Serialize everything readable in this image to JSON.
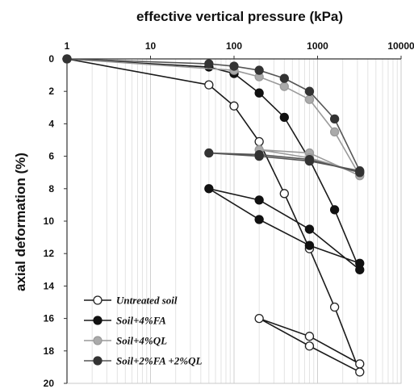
{
  "chart_data": {
    "type": "line",
    "title": "",
    "xlabel": "effective vertical pressure (kPa)",
    "ylabel": "axial deformation (%)",
    "x_scale": "log",
    "xlim": [
      1,
      10000
    ],
    "ylim": [
      0,
      20
    ],
    "y_inverted": true,
    "x_axis_position": "top",
    "xticks": [
      "1",
      "10",
      "100",
      "1000",
      "10000"
    ],
    "yticks": [
      "0",
      "2",
      "4",
      "6",
      "8",
      "10",
      "12",
      "14",
      "16",
      "18",
      "20"
    ],
    "grid": "vertical minor lines",
    "legend_position": "bottom-left",
    "series": [
      {
        "name": "Untreated soil",
        "color": "#ffffff",
        "edge_color": "#222222",
        "line_color": "#1a1a1a",
        "points": [
          [
            1,
            0
          ],
          [
            50,
            1.6
          ],
          [
            100,
            2.9
          ],
          [
            200,
            5.1
          ],
          [
            400,
            8.3
          ],
          [
            800,
            11.7
          ],
          [
            1600,
            15.3
          ],
          [
            3200,
            19.3
          ],
          [
            800,
            17.7
          ],
          [
            200,
            16.0
          ],
          [
            800,
            17.1
          ],
          [
            3200,
            18.8
          ]
        ]
      },
      {
        "name": "Soil+4%FA",
        "color": "#111111",
        "edge_color": "#111111",
        "line_color": "#1a1a1a",
        "points": [
          [
            1,
            0
          ],
          [
            50,
            0.5
          ],
          [
            100,
            0.9
          ],
          [
            200,
            2.1
          ],
          [
            400,
            3.6
          ],
          [
            800,
            6.2
          ],
          [
            1600,
            9.3
          ],
          [
            3200,
            13.0
          ],
          [
            800,
            10.5
          ],
          [
            200,
            8.7
          ],
          [
            50,
            8.0
          ],
          [
            200,
            9.9
          ],
          [
            800,
            11.5
          ],
          [
            3200,
            12.6
          ]
        ]
      },
      {
        "name": "Soil+4%QL",
        "color": "#aaaaaa",
        "edge_color": "#9a9a9a",
        "line_color": "#9a9a9a",
        "points": [
          [
            1,
            0
          ],
          [
            100,
            0.7
          ],
          [
            200,
            1.1
          ],
          [
            400,
            1.7
          ],
          [
            800,
            2.5
          ],
          [
            1600,
            4.5
          ],
          [
            3200,
            7.2
          ],
          [
            800,
            5.8
          ],
          [
            200,
            5.6
          ],
          [
            800,
            6.1
          ],
          [
            3200,
            7.0
          ]
        ]
      },
      {
        "name": "Soil+2%FA +2%QL",
        "color": "#333333",
        "edge_color": "#333333",
        "line_color": "#555555",
        "points": [
          [
            1,
            0
          ],
          [
            50,
            0.3
          ],
          [
            100,
            0.45
          ],
          [
            200,
            0.7
          ],
          [
            400,
            1.2
          ],
          [
            800,
            2.0
          ],
          [
            1600,
            3.7
          ],
          [
            3200,
            6.9
          ],
          [
            800,
            6.3
          ],
          [
            200,
            6.0
          ],
          [
            50,
            5.8
          ],
          [
            200,
            5.9
          ],
          [
            800,
            6.2
          ],
          [
            3200,
            7.0
          ]
        ]
      }
    ]
  }
}
